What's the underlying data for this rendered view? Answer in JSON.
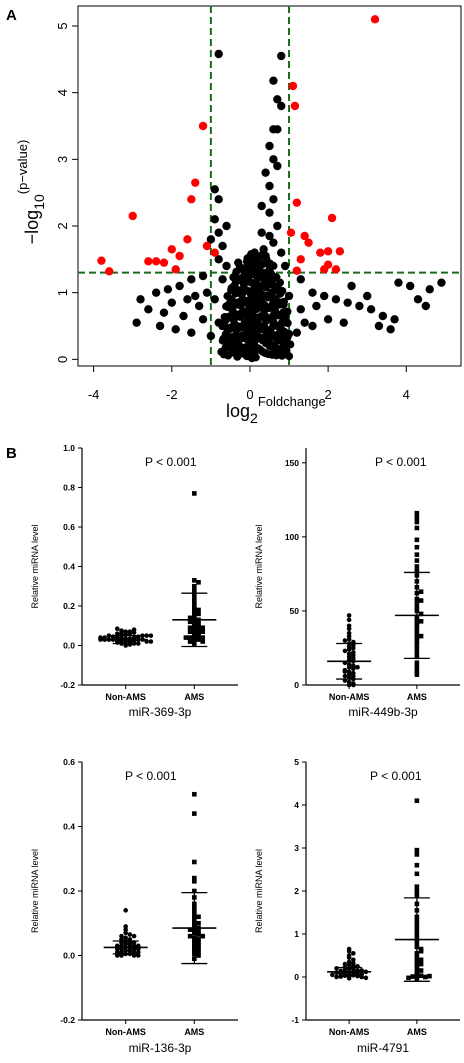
{
  "panels": {
    "a_label": "A",
    "b_label": "B"
  },
  "colors": {
    "significant": "#ff0000",
    "background_point": "#000000",
    "threshold_line": "#1a6b1a"
  },
  "chart_data": [
    {
      "id": "volcano",
      "type": "scatter",
      "title": "",
      "ylabel_main": "−log",
      "ylabel_sub": "10",
      "ylabel_sup": "(p−value)",
      "xlabel_main": "log",
      "xlabel_sub": "2",
      "xlabel_sup": "Foldchange",
      "xlim": [
        -4.4,
        5.4
      ],
      "ylim": [
        -0.1,
        5.3
      ],
      "xticks": [
        -4,
        -2,
        0,
        2,
        4
      ],
      "yticks": [
        0,
        1,
        2,
        3,
        4,
        5
      ],
      "thresholds": {
        "x": [
          -1,
          1
        ],
        "y": 1.3
      },
      "series": [
        {
          "color": "red",
          "points": [
            [
              3.2,
              5.1
            ],
            [
              1.1,
              4.1
            ],
            [
              1.15,
              3.8
            ],
            [
              -1.2,
              3.5
            ],
            [
              -1.4,
              2.65
            ],
            [
              -1.5,
              2.4
            ],
            [
              1.2,
              2.35
            ],
            [
              -3.0,
              2.15
            ],
            [
              2.1,
              2.12
            ],
            [
              1.05,
              1.9
            ],
            [
              1.4,
              1.85
            ],
            [
              -1.6,
              1.8
            ],
            [
              1.5,
              1.75
            ],
            [
              -1.1,
              1.7
            ],
            [
              -2.0,
              1.65
            ],
            [
              -0.9,
              1.6
            ],
            [
              1.8,
              1.6
            ],
            [
              2.0,
              1.62
            ],
            [
              2.3,
              1.62
            ],
            [
              -1.8,
              1.55
            ],
            [
              -3.8,
              1.48
            ],
            [
              -2.6,
              1.47
            ],
            [
              -2.4,
              1.47
            ],
            [
              -2.2,
              1.45
            ],
            [
              1.3,
              1.5
            ],
            [
              2.0,
              1.42
            ],
            [
              -1.9,
              1.35
            ],
            [
              -3.6,
              1.32
            ],
            [
              1.9,
              1.35
            ],
            [
              2.2,
              1.35
            ],
            [
              1.2,
              1.33
            ]
          ]
        },
        {
          "color": "black",
          "points": [
            [
              -0.8,
              4.58
            ],
            [
              0.8,
              4.55
            ],
            [
              0.6,
              4.18
            ],
            [
              0.7,
              3.9
            ],
            [
              0.8,
              3.8
            ],
            [
              0.6,
              3.45
            ],
            [
              0.7,
              3.45
            ],
            [
              0.5,
              3.2
            ],
            [
              0.6,
              3.0
            ],
            [
              0.7,
              2.9
            ],
            [
              0.4,
              2.8
            ],
            [
              0.5,
              2.6
            ],
            [
              -0.9,
              2.55
            ],
            [
              -0.8,
              2.4
            ],
            [
              0.6,
              2.4
            ],
            [
              0.3,
              2.3
            ],
            [
              0.5,
              2.2
            ],
            [
              -0.9,
              2.1
            ],
            [
              -0.6,
              2.0
            ],
            [
              0.7,
              2.0
            ],
            [
              -0.8,
              1.9
            ],
            [
              0.3,
              1.9
            ],
            [
              0.5,
              1.85
            ],
            [
              -1.0,
              1.8
            ],
            [
              0.6,
              1.75
            ],
            [
              -0.7,
              1.7
            ],
            [
              0.8,
              1.6
            ],
            [
              -0.8,
              1.5
            ],
            [
              0.4,
              1.55
            ],
            [
              -0.3,
              1.45
            ],
            [
              0.9,
              1.4
            ],
            [
              -0.6,
              1.4
            ],
            [
              -1.2,
              1.25
            ],
            [
              -1.5,
              1.2
            ],
            [
              -1.8,
              1.1
            ],
            [
              -2.1,
              1.05
            ],
            [
              -2.4,
              1.0
            ],
            [
              -2.8,
              0.9
            ],
            [
              -2.0,
              0.85
            ],
            [
              -1.4,
              0.95
            ],
            [
              -1.1,
              1.0
            ],
            [
              -0.7,
              1.2
            ],
            [
              -0.4,
              1.1
            ],
            [
              -0.2,
              1.0
            ],
            [
              0.2,
              1.05
            ],
            [
              0.4,
              1.2
            ],
            [
              0.7,
              1.1
            ],
            [
              1.3,
              1.2
            ],
            [
              1.6,
              1.0
            ],
            [
              1.9,
              0.95
            ],
            [
              2.2,
              0.9
            ],
            [
              2.5,
              0.85
            ],
            [
              2.8,
              0.8
            ],
            [
              3.1,
              0.75
            ],
            [
              3.4,
              0.65
            ],
            [
              3.7,
              0.6
            ],
            [
              4.1,
              1.1
            ],
            [
              4.3,
              0.9
            ],
            [
              4.6,
              1.05
            ],
            [
              4.9,
              1.15
            ],
            [
              3.8,
              1.15
            ],
            [
              4.5,
              0.8
            ],
            [
              3.6,
              0.45
            ],
            [
              3.3,
              0.5
            ],
            [
              -2.9,
              0.55
            ],
            [
              -2.3,
              0.5
            ],
            [
              -1.9,
              0.45
            ],
            [
              -1.5,
              0.4
            ],
            [
              -1.0,
              0.35
            ],
            [
              -0.6,
              0.3
            ],
            [
              -0.3,
              0.2
            ],
            [
              0,
              0.05
            ],
            [
              0.2,
              0.15
            ],
            [
              0.4,
              0.3
            ],
            [
              0.8,
              0.35
            ],
            [
              1.2,
              0.4
            ],
            [
              1.6,
              0.5
            ],
            [
              2.0,
              0.6
            ],
            [
              2.4,
              0.55
            ],
            [
              -2.6,
              0.75
            ],
            [
              -2.2,
              0.7
            ],
            [
              -1.7,
              0.65
            ],
            [
              -1.2,
              0.6
            ],
            [
              -0.8,
              0.55
            ],
            [
              -0.4,
              0.5
            ],
            [
              0.1,
              0.45
            ],
            [
              0.5,
              0.6
            ],
            [
              0.9,
              0.65
            ],
            [
              1.3,
              0.75
            ],
            [
              1.7,
              0.8
            ],
            [
              -0.1,
              0.7
            ],
            [
              0.3,
              0.8
            ],
            [
              -0.5,
              0.85
            ],
            [
              0.6,
              0.9
            ],
            [
              -0.9,
              0.9
            ],
            [
              1.0,
              0.95
            ],
            [
              -1.3,
              0.8
            ],
            [
              1.4,
              0.55
            ],
            [
              -0.2,
              0.35
            ],
            [
              0.1,
              0.25
            ],
            [
              -0.1,
              0.1
            ],
            [
              0.05,
              0.02
            ],
            [
              -0.05,
              0.4
            ],
            [
              0.15,
              0.6
            ],
            [
              0.25,
              1.3
            ],
            [
              -0.15,
              1.25
            ],
            [
              0.35,
              1.65
            ],
            [
              0.2,
              0.9
            ],
            [
              -1.6,
              0.9
            ],
            [
              2.6,
              1.1
            ],
            [
              3.0,
              0.95
            ]
          ]
        }
      ]
    },
    {
      "id": "miR-369-3p",
      "type": "scatter",
      "title": "P < 0.001",
      "xlabel": "miR-369-3p",
      "ylabel": "Relative miRNA level",
      "categories": [
        "Non-AMS",
        "AMS"
      ],
      "ylim": [
        -0.2,
        1.0
      ],
      "yticks": [
        -0.2,
        0.0,
        0.2,
        0.4,
        0.6,
        0.8,
        1.0
      ],
      "tick_decimals": 1,
      "series": [
        {
          "name": "Non-AMS",
          "marker": "circle",
          "mean": 0.03,
          "sd": 0.02,
          "values": [
            0.0,
            0.005,
            0.01,
            0.01,
            0.015,
            0.02,
            0.02,
            0.02,
            0.025,
            0.025,
            0.03,
            0.03,
            0.03,
            0.03,
            0.035,
            0.035,
            0.04,
            0.04,
            0.04,
            0.045,
            0.045,
            0.05,
            0.05,
            0.05,
            0.055,
            0.06,
            0.06,
            0.065,
            0.07,
            0.07,
            0.075,
            0.08,
            0.085,
            0.02,
            0.03,
            0.04,
            0.01,
            0.05,
            0.06,
            0.02,
            0.03,
            0.04
          ]
        },
        {
          "name": "AMS",
          "marker": "square",
          "mean": 0.13,
          "sd": 0.135,
          "values": [
            0.77,
            0.33,
            0.32,
            0.3,
            0.28,
            0.26,
            0.24,
            0.22,
            0.2,
            0.19,
            0.18,
            0.17,
            0.16,
            0.15,
            0.14,
            0.13,
            0.12,
            0.11,
            0.1,
            0.1,
            0.09,
            0.09,
            0.08,
            0.08,
            0.07,
            0.07,
            0.06,
            0.06,
            0.05,
            0.05,
            0.04,
            0.04,
            0.04,
            0.03,
            0.03,
            0.02,
            0.02,
            0.01,
            0.12,
            0.14
          ]
        }
      ]
    },
    {
      "id": "miR-449b-3p",
      "type": "scatter",
      "title": "P < 0.001",
      "xlabel": "miR-449b-3p",
      "ylabel": "Relative miRNA level",
      "categories": [
        "Non-AMS",
        "AMS"
      ],
      "ylim": [
        0,
        160
      ],
      "yticks": [
        0,
        50,
        100,
        150
      ],
      "tick_decimals": 0,
      "series": [
        {
          "name": "Non-AMS",
          "marker": "circle",
          "mean": 16,
          "sd": 12,
          "values": [
            47,
            44,
            40,
            38,
            35,
            33,
            31,
            29,
            28,
            26,
            25,
            24,
            22,
            21,
            20,
            19,
            18,
            17,
            16,
            15,
            14,
            13,
            12,
            11,
            10,
            9,
            8,
            7,
            6,
            5,
            4,
            3,
            2,
            1,
            0,
            0,
            30,
            27,
            23,
            12,
            9,
            6
          ]
        },
        {
          "name": "AMS",
          "marker": "square",
          "mean": 47,
          "sd": 29,
          "values": [
            116,
            113,
            110,
            106,
            98,
            93,
            88,
            84,
            80,
            77,
            74,
            70,
            66,
            62,
            58,
            55,
            52,
            50,
            48,
            46,
            44,
            42,
            40,
            38,
            35,
            32,
            30,
            28,
            25,
            22,
            19,
            15,
            12,
            9,
            7,
            63,
            57,
            43,
            33
          ]
        }
      ]
    },
    {
      "id": "miR-136-3p",
      "type": "scatter",
      "title": "P < 0.001",
      "xlabel": "miR-136-3p",
      "ylabel": "Relative miRNA level",
      "categories": [
        "Non-AMS",
        "AMS"
      ],
      "ylim": [
        -0.2,
        0.6
      ],
      "yticks": [
        -0.2,
        0.0,
        0.2,
        0.4,
        0.6
      ],
      "tick_decimals": 1,
      "series": [
        {
          "name": "Non-AMS",
          "marker": "circle",
          "mean": 0.025,
          "sd": 0.02,
          "values": [
            0.14,
            0.09,
            0.08,
            0.07,
            0.065,
            0.06,
            0.055,
            0.05,
            0.045,
            0.04,
            0.04,
            0.035,
            0.035,
            0.03,
            0.03,
            0.03,
            0.025,
            0.025,
            0.02,
            0.02,
            0.02,
            0.015,
            0.015,
            0.01,
            0.01,
            0.01,
            0.005,
            0.005,
            0.0,
            0.0,
            0.0,
            0.0,
            0.04,
            0.03,
            0.02,
            0.01,
            0.05,
            0.06
          ]
        },
        {
          "name": "AMS",
          "marker": "square",
          "mean": 0.085,
          "sd": 0.11,
          "values": [
            0.5,
            0.44,
            0.29,
            0.24,
            0.23,
            0.2,
            0.18,
            0.16,
            0.15,
            0.14,
            0.13,
            0.12,
            0.11,
            0.1,
            0.09,
            0.085,
            0.08,
            0.075,
            0.07,
            0.065,
            0.06,
            0.055,
            0.05,
            0.045,
            0.04,
            0.035,
            0.03,
            0.025,
            0.02,
            0.015,
            0.01,
            0.005,
            0.0,
            -0.01,
            0.12,
            0.1,
            0.08,
            0.06
          ]
        }
      ]
    },
    {
      "id": "miR-4791",
      "type": "scatter",
      "title": "P < 0.001",
      "xlabel": "miR-4791",
      "ylabel": "Relative miRNA level",
      "categories": [
        "Non-AMS",
        "AMS"
      ],
      "ylim": [
        -1,
        5
      ],
      "yticks": [
        -1,
        0,
        1,
        2,
        3,
        4,
        5
      ],
      "tick_decimals": 0,
      "series": [
        {
          "name": "Non-AMS",
          "marker": "circle",
          "mean": 0.12,
          "sd": 0.1,
          "values": [
            0.65,
            0.6,
            0.55,
            0.5,
            0.45,
            0.4,
            0.35,
            0.32,
            0.3,
            0.28,
            0.25,
            0.22,
            0.2,
            0.18,
            0.16,
            0.15,
            0.14,
            0.12,
            0.1,
            0.09,
            0.08,
            0.07,
            0.06,
            0.05,
            0.04,
            0.03,
            0.02,
            0.01,
            0.0,
            0.0,
            -0.02,
            -0.03,
            0.1,
            0.12,
            0.15,
            0.2,
            0.25,
            0.05
          ]
        },
        {
          "name": "AMS",
          "marker": "square",
          "mean": 0.87,
          "sd": 0.97,
          "values": [
            4.1,
            2.95,
            2.85,
            2.6,
            2.4,
            2.1,
            2.0,
            1.9,
            1.7,
            1.55,
            1.4,
            1.3,
            1.2,
            1.0,
            0.9,
            0.8,
            0.7,
            0.65,
            0.55,
            0.45,
            0.35,
            0.3,
            0.25,
            0.2,
            0.15,
            0.1,
            0.05,
            0.03,
            0.01,
            0.0,
            -0.02,
            -0.05,
            1.1,
            0.6,
            0.4,
            0.02
          ]
        }
      ]
    }
  ]
}
